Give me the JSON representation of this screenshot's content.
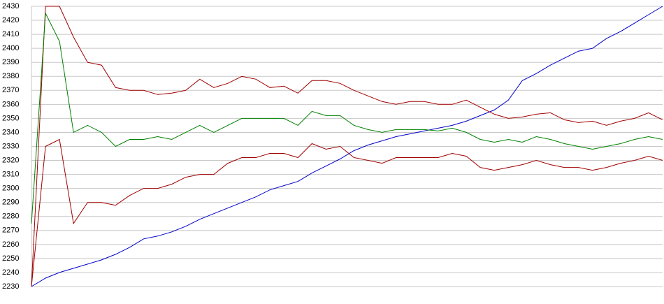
{
  "chart_data": {
    "type": "line",
    "ylim": [
      2230,
      2430
    ],
    "yticks": [
      2230,
      2240,
      2250,
      2260,
      2270,
      2280,
      2290,
      2300,
      2310,
      2320,
      2330,
      2340,
      2350,
      2360,
      2370,
      2380,
      2390,
      2400,
      2410,
      2420,
      2430
    ],
    "grid": true,
    "series": [
      {
        "color": "#0000c8",
        "values": [
          2230,
          2236,
          2240,
          2243,
          2246,
          2249,
          2253,
          2258,
          2264,
          2266,
          2269,
          2273,
          2278,
          2282,
          2286,
          2290,
          2294,
          2299,
          2302,
          2305,
          2311,
          2316,
          2321,
          2327,
          2331,
          2334,
          2337,
          2339,
          2341,
          2343,
          2345,
          2348,
          2352,
          2356,
          2363,
          2377,
          2382,
          2388,
          2393,
          2398,
          2400,
          2407,
          2412,
          2418,
          2424,
          2430
        ]
      },
      {
        "color": "#a00000",
        "values": [
          2230,
          2430,
          2430,
          2408,
          2390,
          2388,
          2372,
          2370,
          2370,
          2367,
          2368,
          2370,
          2378,
          2372,
          2375,
          2380,
          2378,
          2372,
          2373,
          2368,
          2377,
          2377,
          2375,
          2370,
          2366,
          2362,
          2360,
          2362,
          2362,
          2360,
          2360,
          2363,
          2358,
          2353,
          2350,
          2351,
          2353,
          2354,
          2349,
          2347,
          2348,
          2345,
          2348,
          2350,
          2354,
          2349
        ]
      },
      {
        "color": "#008000",
        "values": [
          2275,
          2425,
          2405,
          2340,
          2345,
          2340,
          2330,
          2335,
          2335,
          2337,
          2335,
          2340,
          2345,
          2340,
          2345,
          2350,
          2350,
          2350,
          2350,
          2345,
          2355,
          2352,
          2352,
          2345,
          2342,
          2340,
          2342,
          2342,
          2342,
          2341,
          2343,
          2340,
          2335,
          2333,
          2335,
          2333,
          2337,
          2335,
          2332,
          2330,
          2328,
          2330,
          2332,
          2335,
          2337,
          2335
        ]
      },
      {
        "color": "#a00000",
        "values": [
          2230,
          2330,
          2335,
          2275,
          2290,
          2290,
          2288,
          2295,
          2300,
          2300,
          2303,
          2308,
          2310,
          2310,
          2318,
          2322,
          2322,
          2325,
          2325,
          2322,
          2332,
          2328,
          2330,
          2322,
          2320,
          2318,
          2322,
          2322,
          2322,
          2322,
          2325,
          2323,
          2315,
          2313,
          2315,
          2317,
          2320,
          2317,
          2315,
          2315,
          2313,
          2315,
          2318,
          2320,
          2323,
          2320
        ]
      }
    ]
  }
}
